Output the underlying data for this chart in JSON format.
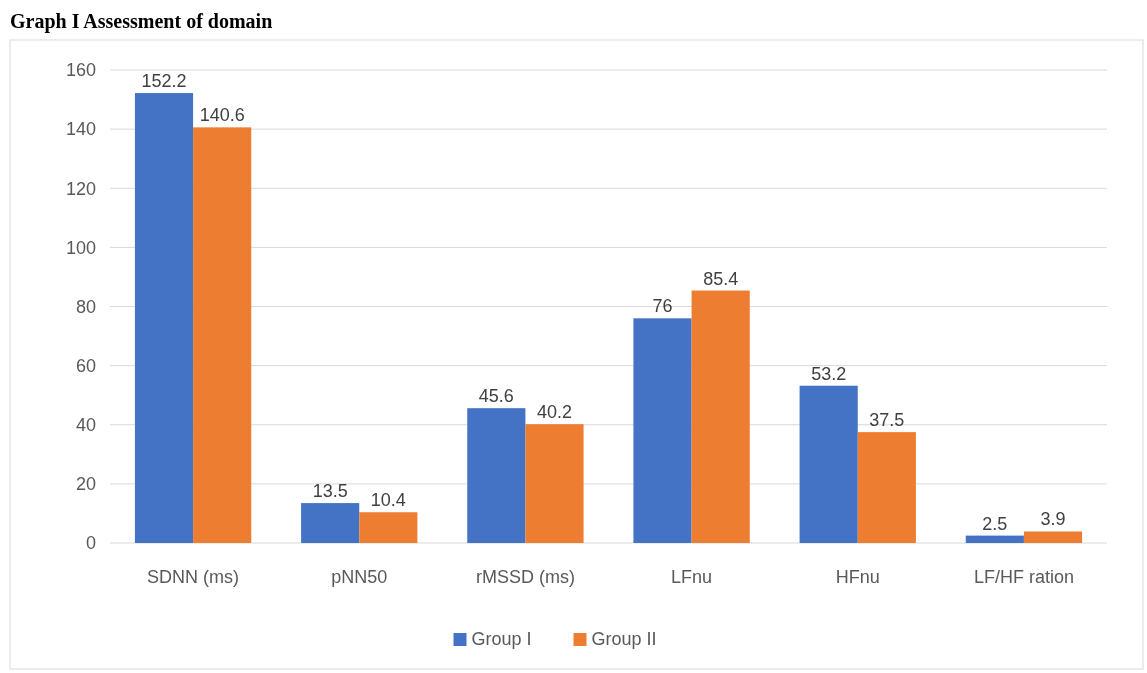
{
  "chart_data": {
    "type": "bar",
    "title": "Graph I Assessment of domain",
    "categories": [
      "SDNN (ms)",
      "pNN50",
      "rMSSD (ms)",
      "LFnu",
      "HFnu",
      "LF/HF ration"
    ],
    "series": [
      {
        "name": "Group I",
        "color": "#4472c4",
        "values": [
          152.2,
          13.5,
          45.6,
          76,
          53.2,
          2.5
        ]
      },
      {
        "name": "Group II",
        "color": "#ed7d31",
        "values": [
          140.6,
          10.4,
          40.2,
          85.4,
          37.5,
          3.9
        ]
      }
    ],
    "ylim": [
      0,
      160
    ],
    "yticks": [
      0,
      20,
      40,
      60,
      80,
      100,
      120,
      140,
      160
    ],
    "grid": "y",
    "legend": "bottom",
    "data_labels": true
  }
}
